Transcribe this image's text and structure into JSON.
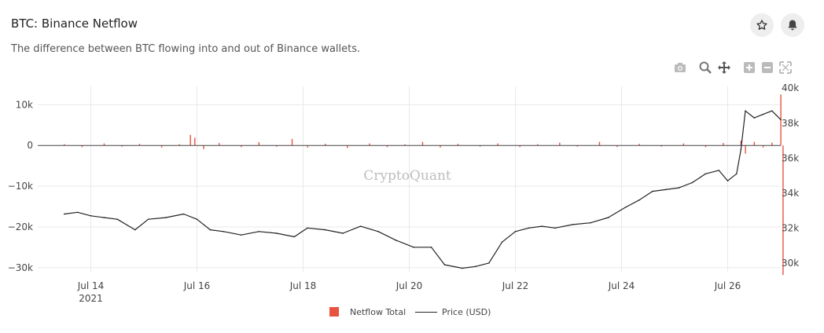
{
  "header": {
    "title": "BTC: Binance Netflow",
    "subtitle": "The difference between BTC flowing into and out of Binance wallets."
  },
  "icons": {
    "star": "star-icon",
    "bell": "bell-icon",
    "camera": "camera-icon",
    "zoom": "zoom-icon",
    "pan": "pan-icon",
    "zoom_in": "zoom-in-icon",
    "zoom_out": "zoom-out-icon",
    "autoscale": "autoscale-icon"
  },
  "watermark": "CryptoQuant",
  "colors": {
    "netflow": "#e8533f",
    "price": "#222222",
    "grid": "#e9e9e9",
    "zeroline": "#444444"
  },
  "chart_data": {
    "type": "bar+line",
    "x_start": "2021-07-13",
    "x_end": "2021-07-27",
    "xticks": [
      {
        "label": "Jul 14",
        "sub": "2021",
        "date": "2021-07-14"
      },
      {
        "label": "Jul 16",
        "sub": "",
        "date": "2021-07-16"
      },
      {
        "label": "Jul 18",
        "sub": "",
        "date": "2021-07-18"
      },
      {
        "label": "Jul 20",
        "sub": "",
        "date": "2021-07-20"
      },
      {
        "label": "Jul 22",
        "sub": "",
        "date": "2021-07-22"
      },
      {
        "label": "Jul 24",
        "sub": "",
        "date": "2021-07-24"
      },
      {
        "label": "Jul 26",
        "sub": "",
        "date": "2021-07-26"
      }
    ],
    "y_left": {
      "ticks": [
        10000,
        0,
        -10000,
        -20000,
        -30000
      ],
      "tick_labels": [
        "10k",
        "0",
        "−10k",
        "−20k",
        "−30k"
      ],
      "range": [
        -31000,
        14500
      ]
    },
    "y_right": {
      "ticks": [
        40000,
        38000,
        36000,
        34000,
        32000,
        30000
      ],
      "tick_labels": [
        "40k",
        "38k",
        "36k",
        "34k",
        "32k",
        "30k"
      ],
      "range": [
        29500,
        40100
      ]
    },
    "series": [
      {
        "name": "Netflow Total",
        "type": "bar",
        "axis": "left",
        "points": [
          [
            "2021-07-13T12:00",
            300
          ],
          [
            "2021-07-13T20:00",
            -400
          ],
          [
            "2021-07-14T06:00",
            500
          ],
          [
            "2021-07-14T14:00",
            -300
          ],
          [
            "2021-07-14T22:00",
            400
          ],
          [
            "2021-07-15T08:00",
            -500
          ],
          [
            "2021-07-15T16:00",
            300
          ],
          [
            "2021-07-15T21:00",
            2600
          ],
          [
            "2021-07-15T23:00",
            1900
          ],
          [
            "2021-07-16T03:00",
            -900
          ],
          [
            "2021-07-16T10:00",
            600
          ],
          [
            "2021-07-16T20:00",
            -400
          ],
          [
            "2021-07-17T04:00",
            800
          ],
          [
            "2021-07-17T12:00",
            -300
          ],
          [
            "2021-07-17T19:00",
            1600
          ],
          [
            "2021-07-18T02:00",
            -500
          ],
          [
            "2021-07-18T10:00",
            400
          ],
          [
            "2021-07-18T20:00",
            -600
          ],
          [
            "2021-07-19T06:00",
            500
          ],
          [
            "2021-07-19T14:00",
            -400
          ],
          [
            "2021-07-19T22:00",
            300
          ],
          [
            "2021-07-20T06:00",
            900
          ],
          [
            "2021-07-20T14:00",
            -500
          ],
          [
            "2021-07-20T22:00",
            400
          ],
          [
            "2021-07-21T08:00",
            -300
          ],
          [
            "2021-07-21T16:00",
            500
          ],
          [
            "2021-07-22T02:00",
            -400
          ],
          [
            "2021-07-22T10:00",
            300
          ],
          [
            "2021-07-22T20:00",
            700
          ],
          [
            "2021-07-23T04:00",
            -300
          ],
          [
            "2021-07-23T14:00",
            900
          ],
          [
            "2021-07-23T22:00",
            -400
          ],
          [
            "2021-07-24T08:00",
            400
          ],
          [
            "2021-07-24T18:00",
            -300
          ],
          [
            "2021-07-25T04:00",
            500
          ],
          [
            "2021-07-25T14:00",
            -400
          ],
          [
            "2021-07-25T22:00",
            600
          ],
          [
            "2021-07-26T06:00",
            1200
          ],
          [
            "2021-07-26T08:00",
            -2000
          ],
          [
            "2021-07-26T12:00",
            900
          ],
          [
            "2021-07-26T16:00",
            -500
          ],
          [
            "2021-07-26T20:00",
            700
          ],
          [
            "2021-07-27T00:00",
            12500
          ],
          [
            "2021-07-27T01:00",
            -31800
          ]
        ]
      },
      {
        "name": "Price (USD)",
        "type": "line",
        "axis": "right",
        "points": [
          [
            "2021-07-13T12:00",
            32800
          ],
          [
            "2021-07-13T18:00",
            32900
          ],
          [
            "2021-07-14T00:00",
            32700
          ],
          [
            "2021-07-14T06:00",
            32600
          ],
          [
            "2021-07-14T12:00",
            32500
          ],
          [
            "2021-07-14T20:00",
            31900
          ],
          [
            "2021-07-15T02:00",
            32500
          ],
          [
            "2021-07-15T10:00",
            32600
          ],
          [
            "2021-07-15T18:00",
            32800
          ],
          [
            "2021-07-16T00:00",
            32500
          ],
          [
            "2021-07-16T06:00",
            31900
          ],
          [
            "2021-07-16T12:00",
            31800
          ],
          [
            "2021-07-16T20:00",
            31600
          ],
          [
            "2021-07-17T04:00",
            31800
          ],
          [
            "2021-07-17T12:00",
            31700
          ],
          [
            "2021-07-17T20:00",
            31500
          ],
          [
            "2021-07-18T02:00",
            32000
          ],
          [
            "2021-07-18T10:00",
            31900
          ],
          [
            "2021-07-18T18:00",
            31700
          ],
          [
            "2021-07-19T02:00",
            32100
          ],
          [
            "2021-07-19T10:00",
            31800
          ],
          [
            "2021-07-19T18:00",
            31300
          ],
          [
            "2021-07-20T02:00",
            30900
          ],
          [
            "2021-07-20T10:00",
            30900
          ],
          [
            "2021-07-20T16:00",
            29900
          ],
          [
            "2021-07-21T00:00",
            29700
          ],
          [
            "2021-07-21T06:00",
            29800
          ],
          [
            "2021-07-21T12:00",
            30000
          ],
          [
            "2021-07-21T18:00",
            31200
          ],
          [
            "2021-07-22T00:00",
            31800
          ],
          [
            "2021-07-22T06:00",
            32000
          ],
          [
            "2021-07-22T12:00",
            32100
          ],
          [
            "2021-07-22T18:00",
            32000
          ],
          [
            "2021-07-23T02:00",
            32200
          ],
          [
            "2021-07-23T10:00",
            32300
          ],
          [
            "2021-07-23T18:00",
            32600
          ],
          [
            "2021-07-24T02:00",
            33200
          ],
          [
            "2021-07-24T08:00",
            33600
          ],
          [
            "2021-07-24T14:00",
            34100
          ],
          [
            "2021-07-24T20:00",
            34200
          ],
          [
            "2021-07-25T02:00",
            34300
          ],
          [
            "2021-07-25T08:00",
            34600
          ],
          [
            "2021-07-25T14:00",
            35100
          ],
          [
            "2021-07-25T20:00",
            35300
          ],
          [
            "2021-07-26T00:00",
            34700
          ],
          [
            "2021-07-26T04:00",
            35100
          ],
          [
            "2021-07-26T06:00",
            36500
          ],
          [
            "2021-07-26T08:00",
            38700
          ],
          [
            "2021-07-26T12:00",
            38300
          ],
          [
            "2021-07-26T16:00",
            38500
          ],
          [
            "2021-07-26T20:00",
            38700
          ],
          [
            "2021-07-27T00:00",
            38200
          ]
        ]
      }
    ],
    "legend": "bottom-center",
    "grid": true
  }
}
